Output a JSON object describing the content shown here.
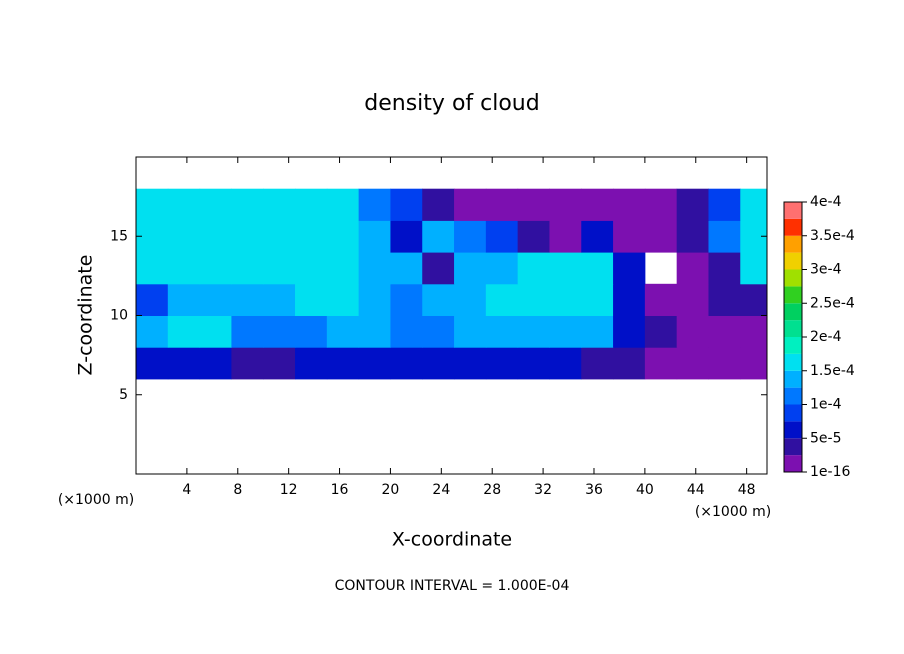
{
  "chart_data": {
    "type": "contourf",
    "title": "density of cloud",
    "x_label": "X-coordinate",
    "y_label": "Z-coordinate",
    "x_unit": "(×1000 m)",
    "y_unit": "(×1000 m)",
    "footer": "CONTOUR INTERVAL = 1.000E-04",
    "xlim": [
      0,
      49.6
    ],
    "ylim": [
      0,
      20
    ],
    "xticks": [
      4,
      8,
      12,
      16,
      20,
      24,
      28,
      32,
      36,
      40,
      44,
      48
    ],
    "yticks": [
      5,
      10,
      15
    ],
    "x": [
      1.25,
      3.75,
      6.25,
      8.75,
      11.25,
      13.75,
      16.25,
      18.75,
      21.25,
      23.75,
      26.25,
      28.75,
      31.25,
      33.75,
      36.25,
      38.75,
      41.25,
      43.75,
      46.25,
      48.75
    ],
    "y": [
      7,
      9,
      11,
      13,
      15,
      17
    ],
    "values": [
      [
        5e-05,
        6e-05,
        5e-05,
        3e-05,
        4e-05,
        5e-05,
        5e-05,
        5e-05,
        5e-05,
        6e-05,
        6e-05,
        5e-05,
        5e-05,
        5e-05,
        4e-05,
        3e-05,
        1e-05,
        1e-05,
        1e-05,
        1e-05
      ],
      [
        0.00013,
        0.00016,
        0.00015,
        0.00012,
        0.0001,
        0.00012,
        0.00013,
        0.00014,
        0.00012,
        0.0001,
        0.00013,
        0.00014,
        0.00014,
        0.00014,
        0.00013,
        6e-05,
        3e-05,
        1e-05,
        2e-05,
        1e-05
      ],
      [
        8e-05,
        0.00013,
        0.00014,
        0.00014,
        0.00014,
        0.00015,
        0.00015,
        0.00014,
        0.00012,
        0.00013,
        0.00014,
        0.00016,
        0.00016,
        0.00016,
        0.00015,
        5e-05,
        1e-05,
        2e-05,
        3e-05,
        4e-05
      ],
      [
        0.00015,
        0.00016,
        0.00016,
        0.00016,
        0.00016,
        0.00016,
        0.00015,
        0.00014,
        0.00013,
        4e-05,
        0.00013,
        0.00014,
        0.00016,
        0.00017,
        0.00015,
        5e-05,
        null,
        1e-05,
        3e-05,
        0.00016
      ],
      [
        0.00016,
        0.00017,
        0.00017,
        0.00017,
        0.00017,
        0.00017,
        0.00016,
        0.00014,
        6e-05,
        0.00013,
        0.0001,
        8e-05,
        4e-05,
        2e-05,
        6e-05,
        2e-05,
        1e-05,
        3e-05,
        0.0001,
        0.00017
      ],
      [
        0.00016,
        0.00017,
        0.00017,
        0.00017,
        0.00017,
        0.00016,
        0.00015,
        0.00012,
        8e-05,
        4e-05,
        2e-05,
        1e-05,
        1e-05,
        1e-05,
        1e-05,
        1e-05,
        1e-05,
        3e-05,
        8e-05,
        0.00015
      ]
    ],
    "levels": [
      1e-16,
      2.5e-05,
      5e-05,
      7.5e-05,
      0.0001,
      0.000125,
      0.00015,
      0.000175,
      0.0002,
      0.000225,
      0.00025,
      0.000275,
      0.0003,
      0.000325,
      0.00035,
      0.000375,
      0.0004
    ],
    "colors": [
      "#7c10b0",
      "#3010a0",
      "#0010c8",
      "#0040f0",
      "#0078ff",
      "#00b0ff",
      "#00e0f0",
      "#00f0c0",
      "#00e090",
      "#00d060",
      "#30d020",
      "#a0e000",
      "#f0d000",
      "#ffa000",
      "#ff3000",
      "#ff7070"
    ],
    "colorbar_ticks": [
      {
        "value": 1e-16,
        "label": "1e-16"
      },
      {
        "value": 5e-05,
        "label": "5e-5"
      },
      {
        "value": 0.0001,
        "label": "1e-4"
      },
      {
        "value": 0.00015,
        "label": "1.5e-4"
      },
      {
        "value": 0.0002,
        "label": "2e-4"
      },
      {
        "value": 0.00025,
        "label": "2.5e-4"
      },
      {
        "value": 0.0003,
        "label": "3e-4"
      },
      {
        "value": 0.00035,
        "label": "3.5e-4"
      },
      {
        "value": 0.0004,
        "label": "4e-4"
      }
    ]
  }
}
